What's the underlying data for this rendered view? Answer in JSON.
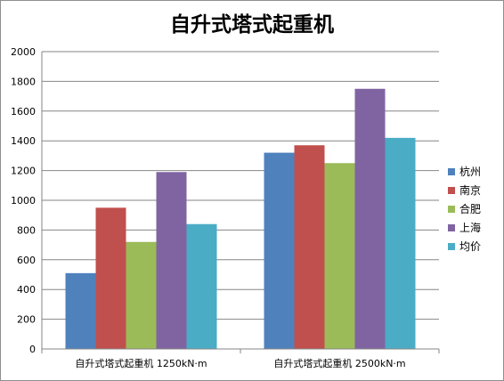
{
  "chart_data": {
    "type": "bar",
    "title": "自升式塔式起重机",
    "categories": [
      "自升式塔式起重机  1250kN·m",
      "自升式塔式起重机  2500kN·m"
    ],
    "series": [
      {
        "name": "杭州",
        "color": "#4f81bd",
        "values": [
          510,
          1320
        ]
      },
      {
        "name": "南京",
        "color": "#c0504d",
        "values": [
          950,
          1370
        ]
      },
      {
        "name": "合肥",
        "color": "#9bbb59",
        "values": [
          720,
          1250
        ]
      },
      {
        "name": "上海",
        "color": "#8064a2",
        "values": [
          1190,
          1750
        ]
      },
      {
        "name": "均价",
        "color": "#4bacc6",
        "values": [
          840,
          1420
        ]
      }
    ],
    "xlabel": "",
    "ylabel": "",
    "ylim": [
      0,
      2000
    ],
    "yticks": [
      0,
      200,
      400,
      600,
      800,
      1000,
      1200,
      1400,
      1600,
      1800,
      2000
    ],
    "grid": true,
    "legend_position": "right"
  }
}
